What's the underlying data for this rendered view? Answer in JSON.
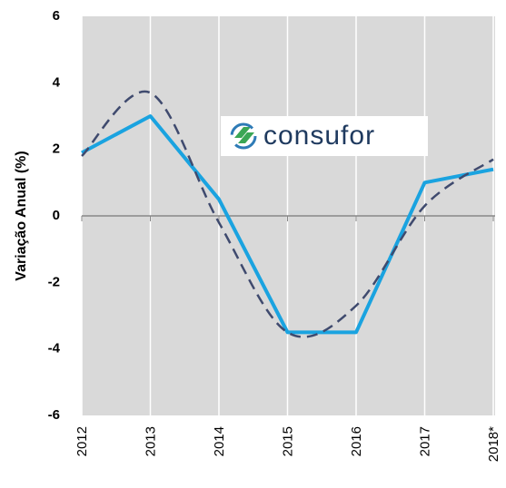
{
  "chart_data": {
    "type": "line",
    "y_label": "Variação Anual (%)",
    "watermark": "consufor",
    "categories": [
      "2012",
      "2013",
      "2014",
      "2015",
      "2016",
      "2017",
      "2018*"
    ],
    "series": [
      {
        "color": "#1aa3e0",
        "style": "solid",
        "values": [
          1.9,
          3.0,
          0.5,
          -3.5,
          -3.5,
          1.0,
          1.4
        ]
      },
      {
        "color": "#3f4a6e",
        "style": "dashed",
        "smooth": true,
        "values": [
          1.8,
          3.7,
          -0.2,
          -3.5,
          -2.7,
          0.3,
          1.7
        ]
      }
    ],
    "ylim": [
      -6,
      6
    ],
    "yticks": [
      -6,
      -4,
      -2,
      0,
      2,
      4,
      6
    ],
    "grid": true
  }
}
